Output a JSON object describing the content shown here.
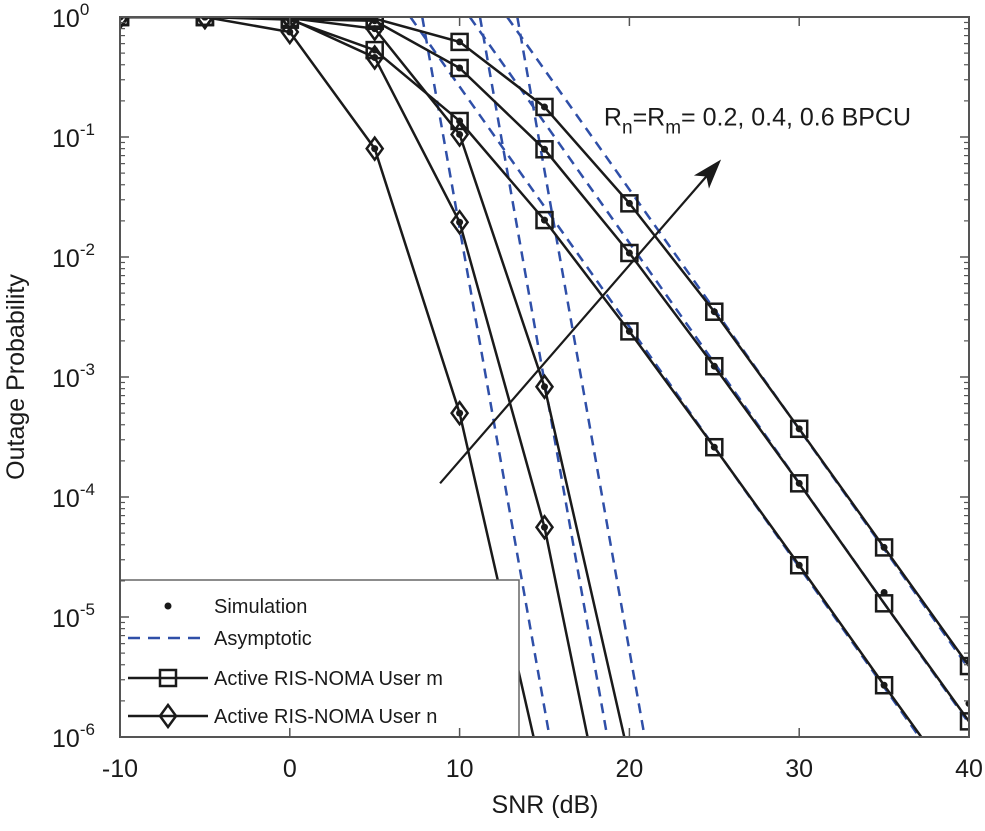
{
  "chart_data": {
    "type": "line",
    "title": "",
    "xlabel": "SNR (dB)",
    "ylabel": "Outage Probability",
    "xlim": [
      -10,
      40
    ],
    "ylim": [
      1e-06,
      1
    ],
    "yscale": "log",
    "grid": false,
    "xticks": [
      -10,
      0,
      10,
      20,
      30,
      40
    ],
    "xtick_labels": [
      "-10",
      "0",
      "10",
      "20",
      "30",
      "40"
    ],
    "ytick_base": "10",
    "ytick_exponents": [
      "0",
      "-1",
      "-2",
      "-3",
      "-4",
      "-5",
      "-6"
    ],
    "legend": {
      "placement": "bottom-left",
      "entries": [
        {
          "label": "Simulation",
          "style": "dot"
        },
        {
          "label": "Asymptotic",
          "style": "dashed"
        },
        {
          "label": "Active RIS-NOMA User m",
          "style": "square"
        },
        {
          "label": "Active RIS-NOMA User n",
          "style": "diamond"
        }
      ]
    },
    "colors": {
      "analytic": "#1a1a1a",
      "asymptotic": "#2f4fa8",
      "axis": "#555555"
    },
    "series": [
      {
        "name": "User m, R=0.2",
        "marker": "square",
        "x": [
          -10,
          -5,
          0,
          5,
          10,
          15,
          20,
          25,
          30,
          35,
          40
        ],
        "y": [
          1,
          1,
          0.95,
          0.53,
          0.136,
          0.0203,
          0.0024,
          0.00026,
          2.7e-05,
          2.7e-06,
          2.8e-07
        ],
        "sim_y": [
          1,
          1,
          0.95,
          0.53,
          0.136,
          0.0203,
          0.0024,
          0.00026,
          2.7e-05,
          2.7e-06,
          2.8e-07
        ]
      },
      {
        "name": "User m, R=0.4",
        "marker": "square",
        "x": [
          -10,
          -5,
          0,
          5,
          10,
          15,
          20,
          25,
          30,
          35,
          40
        ],
        "y": [
          1,
          1,
          0.96,
          0.93,
          0.376,
          0.079,
          0.0108,
          0.00123,
          0.00013,
          1.3e-05,
          1.35e-06
        ],
        "sim_y": [
          1,
          1,
          0.96,
          0.93,
          0.376,
          0.079,
          0.0108,
          0.00123,
          0.00013,
          1.6e-05,
          1.9e-06
        ]
      },
      {
        "name": "User m, R=0.6",
        "marker": "square",
        "x": [
          -10,
          -5,
          0,
          5,
          10,
          15,
          20,
          25,
          30,
          35,
          40
        ],
        "y": [
          1,
          1,
          0.98,
          0.97,
          0.62,
          0.178,
          0.028,
          0.0035,
          0.00037,
          3.8e-05,
          3.9e-06
        ],
        "sim_y": [
          1,
          1,
          0.98,
          0.97,
          0.62,
          0.178,
          0.028,
          0.0035,
          0.00037,
          3.8e-05,
          4.2e-06
        ]
      },
      {
        "name": "User n, R=0.2",
        "marker": "diamond",
        "x": [
          -10,
          -5,
          0,
          5,
          10,
          15
        ],
        "y": [
          1,
          1,
          0.75,
          0.08,
          0.0005,
          4e-07
        ],
        "sim_y": [
          1,
          1,
          0.75,
          0.08,
          0.0005,
          null
        ]
      },
      {
        "name": "User n, R=0.4",
        "marker": "diamond",
        "x": [
          -10,
          -5,
          0,
          5,
          10,
          15,
          20
        ],
        "y": [
          1,
          1,
          0.97,
          0.46,
          0.0195,
          5.6e-05,
          2e-08
        ],
        "sim_y": [
          1,
          1,
          0.97,
          0.46,
          0.0195,
          5.6e-05,
          null
        ]
      },
      {
        "name": "User n, R=0.6",
        "marker": "diamond",
        "x": [
          -10,
          -5,
          0,
          5,
          10,
          15,
          20
        ],
        "y": [
          1,
          1,
          0.98,
          0.8,
          0.105,
          0.00083,
          6.5e-07
        ],
        "sim_y": [
          1,
          1,
          0.98,
          0.8,
          0.105,
          0.00083,
          null
        ]
      }
    ],
    "asymptotes": [
      {
        "name": "Asymptotic m, R=0.2",
        "x": [
          7.1,
          40
        ],
        "y": [
          1,
          2.6e-07
        ]
      },
      {
        "name": "Asymptotic m, R=0.4",
        "x": [
          10.6,
          40
        ],
        "y": [
          1,
          1.3e-06
        ]
      },
      {
        "name": "Asymptotic m, R=0.6",
        "x": [
          12.8,
          40
        ],
        "y": [
          1,
          3.7e-06
        ]
      },
      {
        "name": "Asymptotic n, R=0.2",
        "x": [
          7.8,
          15.3
        ],
        "y": [
          1,
          1e-06
        ]
      },
      {
        "name": "Asymptotic n, R=0.4",
        "x": [
          11.2,
          18.7
        ],
        "y": [
          1,
          1e-06
        ]
      },
      {
        "name": "Asymptotic n, R=0.6",
        "x": [
          13.4,
          20.9
        ],
        "y": [
          1,
          1e-06
        ]
      }
    ],
    "annotation": {
      "base1": "R",
      "sub1": "n",
      "base2": "=R",
      "sub2": "m",
      "rest": "= 0.2, 0.4, 0.6 BPCU",
      "at": [
        18.5,
        0.125
      ]
    },
    "arrow": {
      "from": [
        8.85,
        0.00013
      ],
      "to": [
        25.4,
        0.065
      ]
    }
  }
}
